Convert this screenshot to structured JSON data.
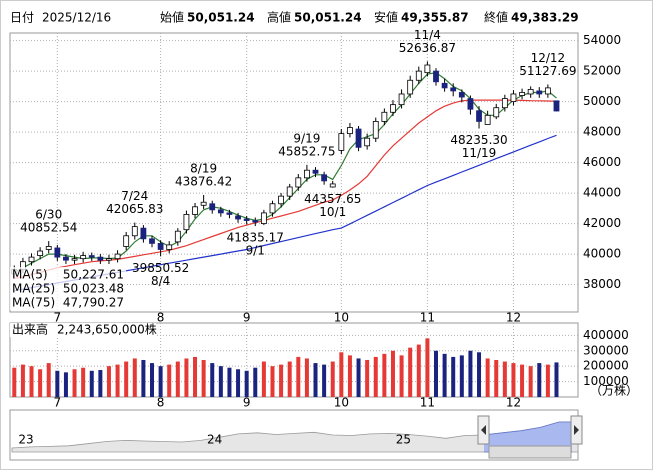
{
  "chart_data": {
    "type": "candlestick",
    "info": {
      "date_label": "日付",
      "date": "2025/12/16",
      "fields": [
        {
          "name": "始値",
          "value": 50051.24,
          "value_label": "50,051.24",
          "color": "#000000"
        },
        {
          "name": "高値",
          "value": 50051.24,
          "value_label": "50,051.24",
          "color": "#e00000"
        },
        {
          "name": "安値",
          "value": 49355.87,
          "value_label": "49,355.87",
          "color": "#008000"
        },
        {
          "name": "終値",
          "value": 49383.29,
          "value_label": "49,383.29",
          "color": "#000000"
        }
      ]
    },
    "categories": [
      null,
      null,
      null,
      null,
      null,
      "7",
      null,
      null,
      null,
      null,
      null,
      null,
      null,
      null,
      null,
      null,
      null,
      "8",
      null,
      null,
      null,
      null,
      null,
      null,
      null,
      null,
      null,
      "9",
      null,
      null,
      null,
      null,
      null,
      null,
      null,
      null,
      null,
      null,
      "10",
      null,
      null,
      null,
      null,
      null,
      null,
      null,
      null,
      null,
      "11",
      null,
      null,
      null,
      null,
      null,
      null,
      null,
      null,
      null,
      "12",
      null,
      null,
      null,
      null,
      null
    ],
    "opens": [
      38700,
      39000,
      39500,
      39900,
      40300,
      40400,
      39800,
      39600,
      39700,
      39900,
      39800,
      39600,
      39700,
      40500,
      41200,
      41700,
      41000,
      40700,
      40300,
      40800,
      41600,
      42600,
      43200,
      43300,
      42900,
      42700,
      42500,
      42300,
      42200,
      42000,
      42700,
      43300,
      43800,
      44400,
      45000,
      45500,
      45200,
      44400,
      46800,
      47900,
      48200,
      47100,
      47600,
      48700,
      49300,
      49800,
      50500,
      51400,
      51900,
      52000,
      51200,
      50900,
      50600,
      50200,
      49400,
      48500,
      49000,
      49600,
      50000,
      50400,
      50500,
      50700,
      50500,
      50051.24
    ],
    "highs": [
      39250,
      39750,
      40050,
      40450,
      40852.54,
      40600,
      40000,
      39950,
      40150,
      40100,
      40000,
      39950,
      40250,
      41450,
      42065.83,
      41900,
      41200,
      40900,
      40850,
      41700,
      42850,
      43350,
      43876.42,
      43500,
      43100,
      42900,
      42700,
      42500,
      42400,
      42900,
      43500,
      44000,
      44600,
      45250,
      45852.75,
      45700,
      45400,
      44800,
      48200,
      48600,
      48400,
      47900,
      48950,
      49550,
      50100,
      50800,
      51700,
      52300,
      52636.87,
      52200,
      51500,
      51200,
      50800,
      50400,
      49700,
      49400,
      49850,
      50450,
      50750,
      50850,
      51000,
      50950,
      51127.69,
      50051.24
    ],
    "lows": [
      38450,
      38750,
      39250,
      39650,
      40050,
      39550,
      39350,
      39350,
      39450,
      39550,
      39350,
      39350,
      39450,
      40250,
      40950,
      40750,
      40450,
      39850.52,
      40050,
      40550,
      41350,
      42350,
      42950,
      42650,
      42450,
      42350,
      42050,
      41950,
      41835.17,
      41900,
      42450,
      43050,
      43550,
      44150,
      44750,
      45050,
      44550,
      44357.65,
      46550,
      47650,
      46750,
      46850,
      47350,
      48450,
      49050,
      49550,
      50250,
      51150,
      51650,
      51050,
      50650,
      50350,
      49950,
      49150,
      48235.3,
      48750,
      48850,
      49350,
      49750,
      50150,
      50250,
      50250,
      50250,
      49355.87
    ],
    "closes": [
      39000,
      39500,
      39800,
      40200,
      40500,
      39800,
      39600,
      39700,
      39900,
      39800,
      39600,
      39700,
      40000,
      41200,
      41800,
      41000,
      40700,
      40300,
      40600,
      41500,
      42600,
      43100,
      43400,
      42900,
      42700,
      42600,
      42300,
      42200,
      42100,
      42700,
      43300,
      43800,
      44400,
      45000,
      45500,
      45300,
      44800,
      44600,
      47900,
      48300,
      47000,
      47600,
      48700,
      49300,
      49800,
      50500,
      51400,
      52000,
      52400,
      51300,
      50900,
      50700,
      50300,
      49500,
      48700,
      49100,
      49600,
      50200,
      50500,
      50600,
      50800,
      50500,
      50900,
      49383.29
    ],
    "up_color": "#ffffff",
    "down_color": "#1a237e",
    "wick_color": "#000000",
    "ylim": [
      36200,
      54500
    ],
    "yticks": [
      38000,
      40000,
      42000,
      44000,
      46000,
      48000,
      50000,
      52000,
      54000
    ],
    "grid": true,
    "moving_averages": [
      {
        "name": "MA(5)",
        "color": "#2e7d32",
        "value_label": "50,227.61",
        "values": [
          38800,
          39100,
          39400,
          39700,
          40000,
          40000,
          39900,
          39800,
          39700,
          39750,
          39750,
          39700,
          39750,
          40200,
          40800,
          41200,
          41200,
          40800,
          40500,
          40800,
          41500,
          42300,
          42900,
          43100,
          43000,
          42800,
          42550,
          42350,
          42200,
          42300,
          42600,
          43100,
          43700,
          44300,
          44900,
          45200,
          45200,
          44900,
          45800,
          46900,
          47500,
          47700,
          47900,
          48500,
          49200,
          49800,
          50500,
          51200,
          51800,
          51900,
          51500,
          51000,
          50700,
          50200,
          49500,
          49100,
          49100,
          49600,
          50100,
          50400,
          50600,
          50600,
          50700,
          50227.61
        ]
      },
      {
        "name": "MA(25)",
        "color": "#e53935",
        "value_label": "50,023.48",
        "values": [
          38400,
          38500,
          38650,
          38800,
          38950,
          39100,
          39200,
          39300,
          39400,
          39500,
          39550,
          39600,
          39650,
          39750,
          39850,
          39950,
          40050,
          40150,
          40250,
          40400,
          40550,
          40750,
          40950,
          41150,
          41350,
          41550,
          41750,
          41900,
          42050,
          42200,
          42350,
          42500,
          42650,
          42800,
          43000,
          43200,
          43400,
          43550,
          43850,
          44200,
          44600,
          45100,
          45800,
          46500,
          47100,
          47600,
          48100,
          48600,
          49000,
          49400,
          49700,
          49900,
          50050,
          50100,
          50100,
          50100,
          50100,
          50100,
          50100,
          50080,
          50060,
          50050,
          50040,
          50023.48
        ]
      },
      {
        "name": "MA(75)",
        "color": "#2233cc",
        "value_label": "47,790.27",
        "values": [
          37600,
          37700,
          37800,
          37900,
          38000,
          38100,
          38200,
          38300,
          38400,
          38500,
          38600,
          38700,
          38800,
          38900,
          39000,
          39100,
          39200,
          39300,
          39400,
          39500,
          39600,
          39700,
          39800,
          39900,
          40000,
          40100,
          40200,
          40300,
          40430,
          40560,
          40690,
          40820,
          40950,
          41080,
          41210,
          41340,
          41470,
          41600,
          41700,
          41980,
          42260,
          42540,
          42820,
          43100,
          43380,
          43660,
          43940,
          44220,
          44500,
          44720,
          44940,
          45160,
          45380,
          45600,
          45820,
          46040,
          46260,
          46480,
          46700,
          46920,
          47140,
          47360,
          47580,
          47790.27
        ]
      }
    ],
    "annotations": [
      {
        "date": "6/30",
        "value": 40852.54
      },
      {
        "date": "7/24",
        "value": 42065.83
      },
      {
        "date": "8/4",
        "value": 39850.52
      },
      {
        "date": "8/19",
        "value": 43876.42
      },
      {
        "date": "9/1",
        "value": 41835.17
      },
      {
        "date": "9/19",
        "value": 45852.75
      },
      {
        "date": "10/1",
        "value": 44357.65
      },
      {
        "date": "11/4",
        "value": 52636.87
      },
      {
        "date": "11/19",
        "value": 48235.3,
        "value_label": "48235.30"
      },
      {
        "date": "12/12",
        "value": 51127.69
      }
    ],
    "volume": {
      "title": "出来高",
      "total": 2243650000,
      "total_label": "2,243,650,000株",
      "unit": "（万株）",
      "up_color": "#e53935",
      "down_color": "#1a237e",
      "values": [
        190000,
        210000,
        200000,
        180000,
        220000,
        170000,
        160000,
        180000,
        190000,
        170000,
        175000,
        200000,
        210000,
        230000,
        250000,
        240000,
        220000,
        200000,
        210000,
        230000,
        250000,
        260000,
        240000,
        220000,
        200000,
        190000,
        180000,
        170000,
        190000,
        230000,
        200000,
        210000,
        230000,
        260000,
        250000,
        220000,
        210000,
        230000,
        290000,
        270000,
        250000,
        240000,
        260000,
        280000,
        300000,
        270000,
        320000,
        340000,
        380000,
        300000,
        280000,
        260000,
        270000,
        300000,
        290000,
        250000,
        240000,
        230000,
        220000,
        210000,
        200000,
        220000,
        210000,
        224365
      ],
      "ylim": [
        0,
        480000
      ],
      "yticks": [
        100000,
        200000,
        300000,
        400000
      ]
    },
    "navigator": {
      "categories": [
        "23",
        null,
        null,
        null,
        null,
        null,
        null,
        null,
        null,
        null,
        "24",
        null,
        null,
        null,
        null,
        null,
        null,
        null,
        null,
        null,
        "25",
        null,
        null,
        null,
        null,
        null,
        null,
        null,
        null,
        null,
        null
      ],
      "values": [
        26000,
        27000,
        27500,
        28000,
        30000,
        32000,
        33000,
        32500,
        32000,
        31500,
        33000,
        36000,
        39000,
        40000,
        38500,
        39500,
        40500,
        38000,
        37500,
        39000,
        39500,
        38500,
        37000,
        35000,
        37500,
        38000,
        40000,
        42000,
        45000,
        50000,
        50000
      ]
    }
  }
}
